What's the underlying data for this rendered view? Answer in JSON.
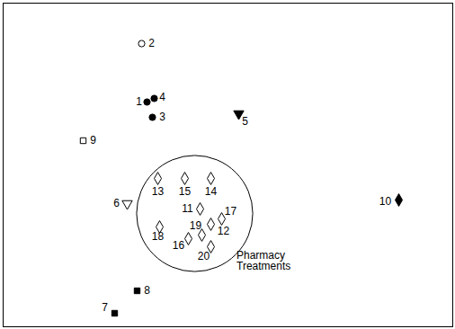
{
  "chart_data": {
    "type": "scatter",
    "color": "#000000",
    "tick_labels": false,
    "grid": false,
    "xlim": [
      0,
      500
    ],
    "ylim": [
      0,
      360
    ],
    "points": [
      {
        "label": "1",
        "x": 160,
        "y": 250,
        "marker": "filled-circle"
      },
      {
        "label": "2",
        "x": 154,
        "y": 315,
        "marker": "open-circle"
      },
      {
        "label": "3",
        "x": 166,
        "y": 233,
        "marker": "filled-circle"
      },
      {
        "label": "4",
        "x": 168,
        "y": 254,
        "marker": "filled-circle"
      },
      {
        "label": "5",
        "x": 262,
        "y": 237,
        "marker": "filled-triangle-down"
      },
      {
        "label": "6",
        "x": 138,
        "y": 137,
        "marker": "open-triangle-down"
      },
      {
        "label": "7",
        "x": 124,
        "y": 15,
        "marker": "filled-square"
      },
      {
        "label": "8",
        "x": 149,
        "y": 40,
        "marker": "filled-square"
      },
      {
        "label": "9",
        "x": 89,
        "y": 207,
        "marker": "open-square"
      },
      {
        "label": "10",
        "x": 440,
        "y": 141,
        "marker": "filled-diamond"
      },
      {
        "label": "11",
        "x": 219,
        "y": 131,
        "marker": "open-diamond"
      },
      {
        "label": "12",
        "x": 231,
        "y": 114,
        "marker": "open-diamond"
      },
      {
        "label": "13",
        "x": 172,
        "y": 165,
        "marker": "open-diamond"
      },
      {
        "label": "14",
        "x": 231,
        "y": 165,
        "marker": "open-diamond"
      },
      {
        "label": "15",
        "x": 202,
        "y": 165,
        "marker": "open-diamond"
      },
      {
        "label": "16",
        "x": 206,
        "y": 98,
        "marker": "open-diamond"
      },
      {
        "label": "17",
        "x": 243,
        "y": 120,
        "marker": "open-diamond"
      },
      {
        "label": "18",
        "x": 174,
        "y": 111,
        "marker": "open-diamond"
      },
      {
        "label": "19",
        "x": 221,
        "y": 102,
        "marker": "open-diamond"
      },
      {
        "label": "20",
        "x": 231,
        "y": 89,
        "marker": "open-diamond"
      }
    ],
    "groups": [
      {
        "label": "Pharmacy Treatments",
        "members": [
          "11",
          "12",
          "13",
          "14",
          "15",
          "16",
          "17",
          "18",
          "19",
          "20"
        ]
      }
    ]
  }
}
